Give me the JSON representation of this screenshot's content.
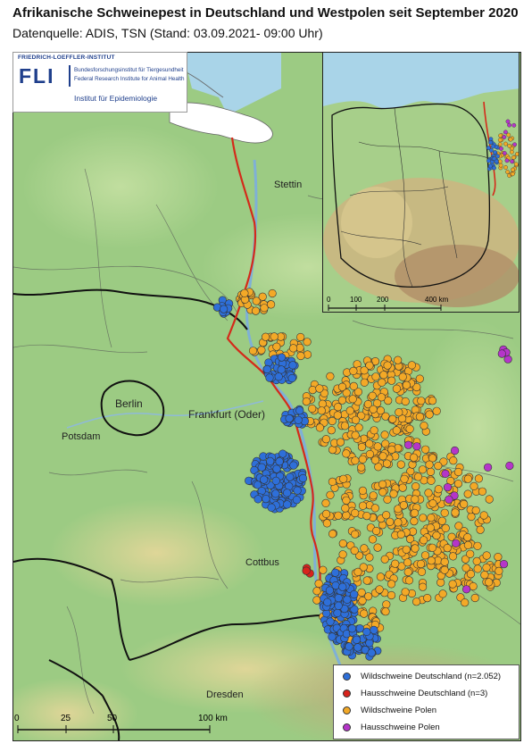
{
  "title": "Afrikanische Schweinepest in Deutschland und Westpolen seit September 2020",
  "subtitle": "Datenquelle: ADIS, TSN (Stand: 03.09.2021- 09:00 Uhr)",
  "logo": {
    "institute_top": "FRIEDRICH-LOEFFLER-INSTITUT",
    "acronym": "FLI",
    "line1": "Bundesforschungsinstitut für Tiergesundheit",
    "line2": "Federal Research Institute for Animal Health",
    "department": "Institut für Epidemiologie"
  },
  "places": {
    "stettin": "Stettin",
    "berlin": "Berlin",
    "potsdam": "Potsdam",
    "frankfurt": "Frankfurt (Oder)",
    "cottbus": "Cottbus",
    "dresden": "Dresden"
  },
  "legend": [
    {
      "label": "Wildschweine Deutschland (n=2.052)",
      "color": "#2e6fd9"
    },
    {
      "label": "Hausschweine Deutschland (n=3)",
      "color": "#d8231c"
    },
    {
      "label": "Wildschweine Polen",
      "color": "#f3a927"
    },
    {
      "label": "Hausschweine Polen",
      "color": "#b535c9"
    }
  ],
  "scale_main": {
    "ticks": [
      "0",
      "25",
      "50",
      "100 km"
    ]
  },
  "scale_inset": {
    "ticks": [
      "0",
      "100",
      "200",
      "400 km"
    ]
  },
  "colors": {
    "border_red": "#d42a1a",
    "water": "#a9d4e8",
    "lowland": "#9ccb83"
  }
}
